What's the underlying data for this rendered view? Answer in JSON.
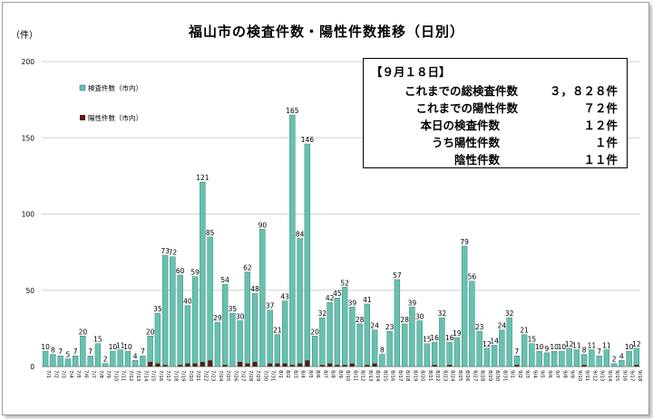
{
  "title": "福山市の検査件数・陽性件数推移（日別）",
  "y_unit": "（件）",
  "info_box": {
    "date_label": "【９月１８日】",
    "rows": [
      {
        "label": "これまでの総検査件数",
        "value": "３，８２８件"
      },
      {
        "label": "これまでの陽性件数",
        "value": "７２件"
      },
      {
        "label": "本日の検査件数",
        "value": "１２件"
      },
      {
        "label": "うち陽性件数",
        "value": "１件"
      },
      {
        "label": "陰性件数",
        "value": "１１件"
      }
    ]
  },
  "colors": {
    "tests": "#66c2b0",
    "tests_border": "#2d6b63",
    "positives": "#5a1a10",
    "grid": "#d0d0d0"
  },
  "chart_data": {
    "type": "bar",
    "ylim": [
      0,
      200
    ],
    "yticks": [
      0,
      50,
      100,
      150,
      200
    ],
    "grid": true,
    "legend_position": "top-left",
    "series": [
      {
        "name": "検査件数（市内）",
        "values": [
          10,
          8,
          7,
          5,
          7,
          20,
          7,
          15,
          2,
          10,
          11,
          10,
          4,
          7,
          20,
          35,
          73,
          72,
          60,
          40,
          59,
          121,
          85,
          29,
          54,
          35,
          30,
          62,
          48,
          90,
          37,
          21,
          43,
          165,
          84,
          146,
          20,
          32,
          42,
          45,
          52,
          39,
          28,
          41,
          24,
          8,
          23,
          57,
          28,
          39,
          30,
          15,
          16,
          32,
          16,
          19,
          79,
          56,
          23,
          12,
          14,
          24,
          32,
          7,
          21,
          15,
          10,
          9,
          10,
          10,
          12,
          11,
          8,
          11,
          7,
          11,
          2,
          4,
          10,
          12
        ]
      },
      {
        "name": "陽性件数（市内）",
        "values": [
          0,
          0,
          0,
          0,
          0,
          0,
          0,
          0,
          0,
          0,
          0,
          0,
          0,
          0,
          3,
          2,
          1,
          0,
          1,
          2,
          2,
          3,
          4,
          0,
          1,
          0,
          3,
          2,
          3,
          0,
          2,
          2,
          2,
          1,
          2,
          4,
          0,
          1,
          2,
          1,
          1,
          2,
          0,
          1,
          2,
          0,
          0,
          0,
          0,
          0,
          0,
          0,
          1,
          0,
          1,
          0,
          0,
          0,
          0,
          0,
          0,
          0,
          0,
          1,
          0,
          0,
          0,
          0,
          0,
          0,
          0,
          0,
          1,
          0,
          0,
          0,
          0,
          0,
          0,
          1
        ]
      }
    ],
    "categories": [
      "7/1",
      "7/2",
      "7/3",
      "7/4",
      "7/5",
      "7/6",
      "7/7",
      "7/8",
      "7/9",
      "7/10",
      "7/11",
      "7/12",
      "7/13",
      "7/14",
      "7/15",
      "7/16",
      "7/17",
      "7/18",
      "7/19",
      "7/20",
      "7/21",
      "7/22",
      "7/23",
      "7/24",
      "7/25",
      "7/26",
      "7/27",
      "7/28",
      "7/29",
      "7/30",
      "7/31",
      "8/1",
      "8/2",
      "8/3",
      "8/4",
      "8/5",
      "8/6",
      "8/7",
      "8/8",
      "8/9",
      "8/10",
      "8/11",
      "8/12",
      "8/13",
      "8/14",
      "8/15",
      "8/16",
      "8/17",
      "8/18",
      "8/19",
      "8/20",
      "8/21",
      "8/22",
      "8/23",
      "8/24",
      "8/25",
      "8/26",
      "8/27",
      "8/28",
      "8/29",
      "8/30",
      "8/31",
      "9/1",
      "9/2",
      "9/3",
      "9/4",
      "9/5",
      "9/6",
      "9/7",
      "9/8",
      "9/9",
      "9/10",
      "9/11",
      "9/12",
      "9/13",
      "9/14",
      "9/15",
      "9/16",
      "9/17",
      "9/18"
    ]
  }
}
